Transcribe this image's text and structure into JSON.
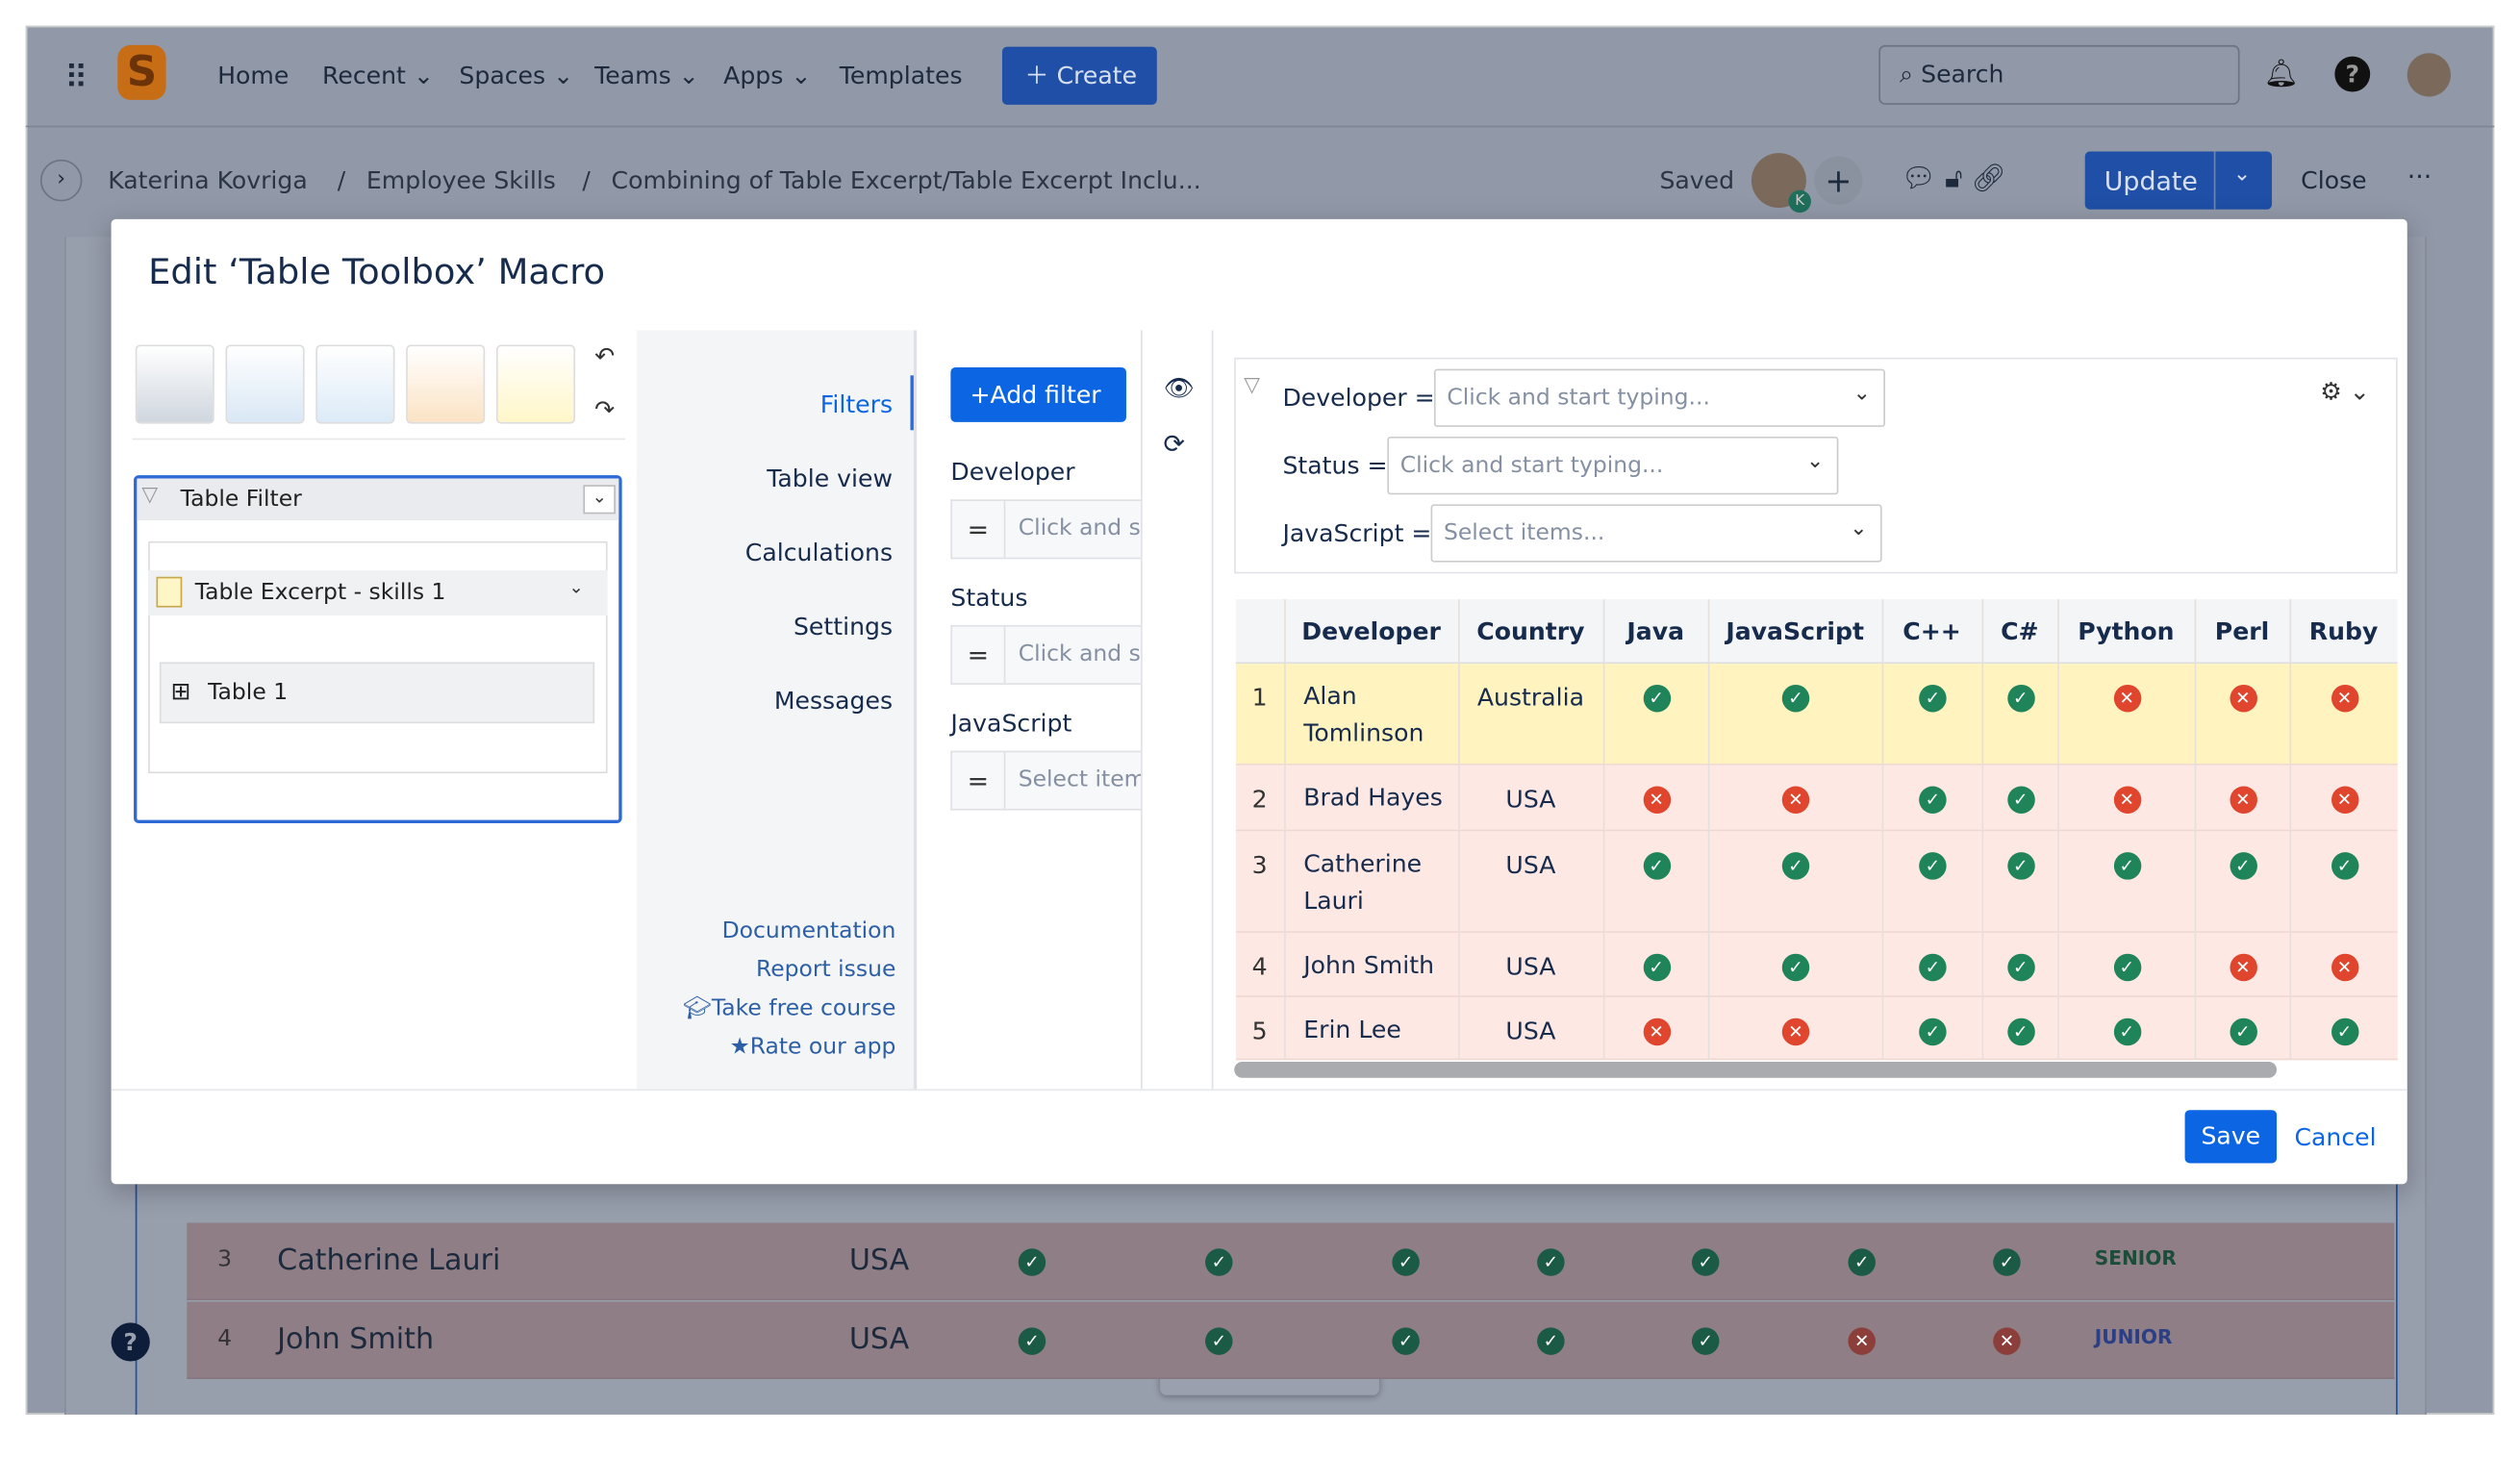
{
  "nav": {
    "items": [
      "Home",
      "Recent",
      "Spaces",
      "Teams",
      "Apps",
      "Templates"
    ],
    "create": "Create",
    "search": "Search"
  },
  "breadcrumb": [
    "Katerina Kovriga",
    "Employee Skills",
    "Combining of Table Excerpt/Table Excerpt Inclu..."
  ],
  "toolbar": {
    "saved": "Saved",
    "badge": "K",
    "update": "Update",
    "close": "Close"
  },
  "dialog": {
    "title": "Edit ‘Table Toolbox’ Macro",
    "tree": {
      "filter": "Table Filter",
      "excerpt": "Table Excerpt - skills 1",
      "table": "Table 1"
    },
    "menu": [
      "Filters",
      "Table view",
      "Calculations",
      "Settings",
      "Messages"
    ],
    "links": [
      "Documentation",
      "Report issue",
      "Take free course",
      "Rate our app"
    ],
    "add_filter": "Add filter",
    "filters": [
      {
        "label": "Developer",
        "placeholder": "Click and start typing..."
      },
      {
        "label": "Status",
        "placeholder": "Click and start typing..."
      },
      {
        "label": "JavaScript",
        "placeholder": "Select items..."
      }
    ],
    "preview_filters": [
      {
        "label": "Developer =",
        "placeholder": "Click and start typing..."
      },
      {
        "label": "Status =",
        "placeholder": "Click and start typing..."
      },
      {
        "label": "JavaScript =",
        "placeholder": "Select items..."
      }
    ],
    "table": {
      "headers": [
        "Developer",
        "Country",
        "Java",
        "JavaScript",
        "C++",
        "C#",
        "Python",
        "Perl",
        "Ruby"
      ],
      "rows": [
        {
          "n": "1",
          "name": "Alan Tomlinson",
          "country": "Australia",
          "skills": [
            true,
            true,
            true,
            true,
            false,
            false,
            false
          ]
        },
        {
          "n": "2",
          "name": "Brad Hayes",
          "country": "USA",
          "skills": [
            false,
            false,
            true,
            true,
            false,
            false,
            false
          ]
        },
        {
          "n": "3",
          "name": "Catherine Lauri",
          "country": "USA",
          "skills": [
            true,
            true,
            true,
            true,
            true,
            true,
            true
          ]
        },
        {
          "n": "4",
          "name": "John Smith",
          "country": "USA",
          "skills": [
            true,
            true,
            true,
            true,
            true,
            false,
            false
          ]
        },
        {
          "n": "5",
          "name": "Erin Lee",
          "country": "USA",
          "skills": [
            false,
            false,
            true,
            true,
            true,
            true,
            true
          ]
        }
      ]
    },
    "save": "Save",
    "cancel": "Cancel"
  },
  "background_rows": [
    {
      "n": "3",
      "name": "Catherine Lauri",
      "country": "USA",
      "skills": [
        true,
        true,
        true,
        true,
        true,
        true,
        true
      ],
      "level": "SENIOR"
    },
    {
      "n": "4",
      "name": "John Smith",
      "country": "USA",
      "skills": [
        true,
        true,
        true,
        true,
        true,
        false,
        false
      ],
      "level": "JUNIOR"
    }
  ]
}
